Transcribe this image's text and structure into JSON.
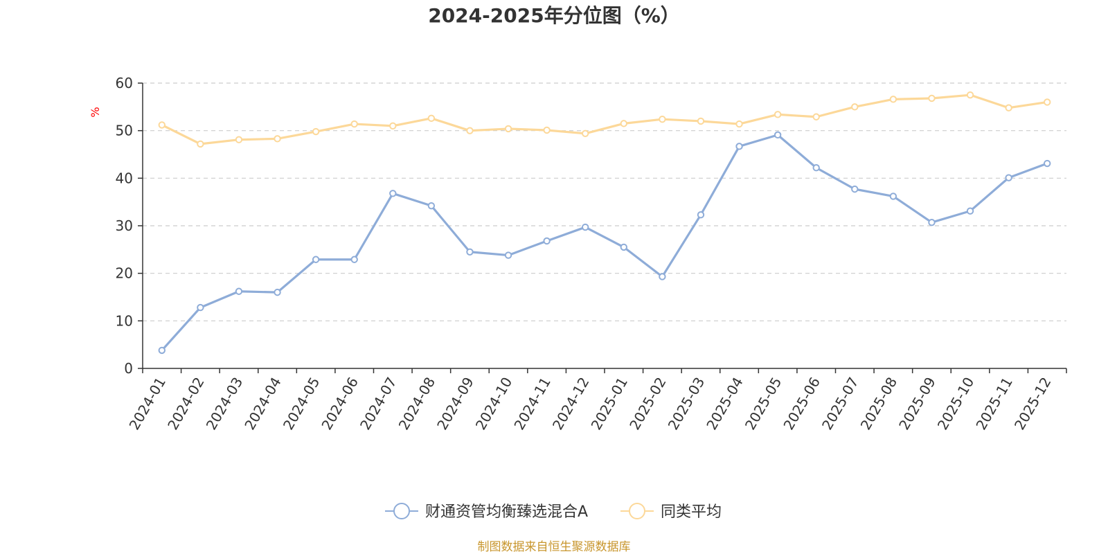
{
  "chart_data": {
    "type": "line",
    "title": "2024-2025年分位图（%）",
    "ylabel": "%",
    "xlabel": "",
    "ylim": [
      0,
      60
    ],
    "yticks": [
      0,
      10,
      20,
      30,
      40,
      50,
      60
    ],
    "grid": true,
    "legend_position": "bottom-center",
    "categories": [
      "2024-01",
      "2024-02",
      "2024-03",
      "2024-04",
      "2024-05",
      "2024-06",
      "2024-07",
      "2024-08",
      "2024-09",
      "2024-10",
      "2024-11",
      "2024-12",
      "2025-01",
      "2025-02",
      "2025-03",
      "2025-04",
      "2025-05",
      "2025-06",
      "2025-07",
      "2025-08",
      "2025-09",
      "2025-10",
      "2025-11",
      "2025-12"
    ],
    "series": [
      {
        "name": "财通资管均衡臻选混合A",
        "color": "#8eacd8",
        "values": [
          3.8,
          12.8,
          16.2,
          16.0,
          22.9,
          22.9,
          36.8,
          34.2,
          24.5,
          23.8,
          26.8,
          29.7,
          25.5,
          19.3,
          32.3,
          46.7,
          49.1,
          42.2,
          37.7,
          36.2,
          30.7,
          33.1,
          40.1,
          43.1
        ]
      },
      {
        "name": "同类平均",
        "color": "#fcd899",
        "values": [
          51.2,
          47.2,
          48.1,
          48.3,
          49.8,
          51.4,
          51.0,
          52.6,
          50.0,
          50.4,
          50.1,
          49.4,
          51.5,
          52.4,
          52.0,
          51.4,
          53.4,
          52.9,
          55.0,
          56.6,
          56.8,
          57.5,
          54.8,
          56.0
        ]
      }
    ]
  },
  "colors": {
    "axis": "#333333",
    "grid": "#cccccc",
    "unit_label": "#ff0000",
    "source_text": "#c8962d"
  },
  "source_note": "制图数据来自恒生聚源数据库"
}
